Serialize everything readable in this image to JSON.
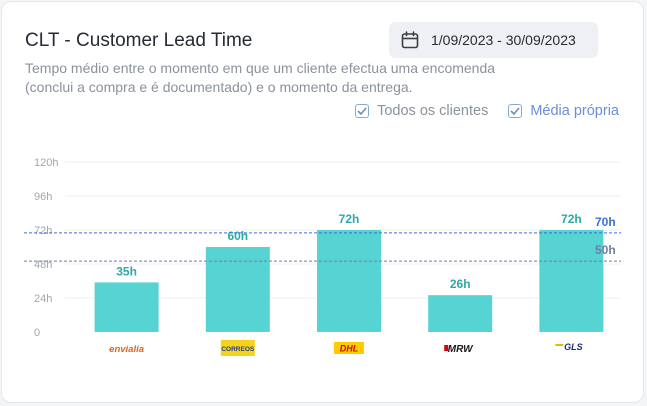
{
  "header": {
    "title": "CLT - Customer Lead Time",
    "date_range": "1/09/2023 - 30/09/2023",
    "subtitle_line1": "Tempo médio entre o momento em que um cliente efectua uma encomenda",
    "subtitle_line2": "(conclui a compra e é documentado) e o momento da entrega."
  },
  "toggles": {
    "all_clients": {
      "label": "Todos os clientes",
      "checked": true
    },
    "own_average": {
      "label": "Média própria",
      "checked": true
    }
  },
  "colors": {
    "bar": "#56d3d3",
    "bar_label": "#2fa9a5",
    "all_clients_line": "#3b6fd6",
    "own_average_line": "#6f7ea6",
    "accent_blue": "#6a8fd8"
  },
  "chart_data": {
    "type": "bar",
    "categories": [
      "envialia",
      "CORREOS",
      "DHL",
      "MRW",
      "GLS"
    ],
    "values": [
      35,
      60,
      72,
      26,
      72
    ],
    "value_labels": [
      "35h",
      "60h",
      "72h",
      "26h",
      "72h"
    ],
    "ylim": [
      0,
      120
    ],
    "yticks": [
      0,
      24,
      48,
      72,
      96,
      120
    ],
    "ytick_labels": [
      "0",
      "24h",
      "48h",
      "72h",
      "96h",
      "120h"
    ],
    "reference_lines": [
      {
        "value": 70,
        "label": "70h",
        "color": "#3b6fd6"
      },
      {
        "value": 50,
        "label": "50h",
        "color": "#6f7ea6"
      }
    ],
    "grid": true
  }
}
